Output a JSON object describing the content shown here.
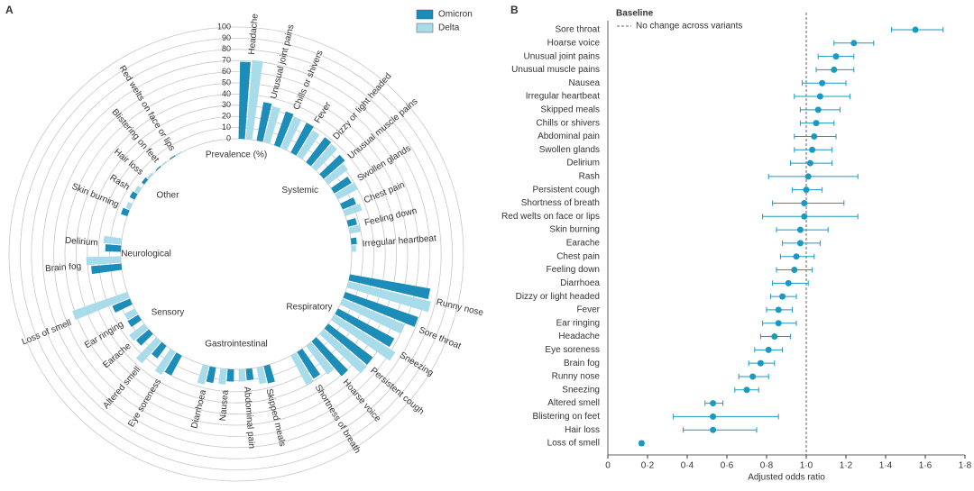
{
  "chart_data": [
    {
      "type": "radial-bar",
      "title": "A",
      "axis_label": "Prevalence (%)",
      "rlim": [
        0,
        100
      ],
      "rticks": [
        0,
        10,
        20,
        30,
        40,
        50,
        60,
        70,
        80,
        90,
        100
      ],
      "grid": true,
      "legend": "upper right",
      "groups": [
        {
          "name": "Systemic",
          "categories": [
            "Headache",
            "Unusual joint pains",
            "Chills or shivers",
            "Fever",
            "Dizzy or light headed",
            "Unusual muscle pains",
            "Swollen glands",
            "Chest pain",
            "Feeling down",
            "Irregular heartbeat"
          ]
        },
        {
          "name": "Respiratory",
          "categories": [
            "Runny nose",
            "Sore throat",
            "Sneezing",
            "Persistent cough",
            "Hoarse voice",
            "Shortness of breath"
          ]
        },
        {
          "name": "Gastrointestinal",
          "categories": [
            "Skipped meals",
            "Abdominal pain",
            "Nausea",
            "Diarrhoea"
          ]
        },
        {
          "name": "Sensory",
          "categories": [
            "Eye soreness",
            "Altered smell",
            "Earache",
            "Ear ringing",
            "Loss of smell"
          ]
        },
        {
          "name": "Neurological",
          "categories": [
            "Brain fog",
            "Delirium"
          ]
        },
        {
          "name": "Other",
          "categories": [
            "Skin burning",
            "Rash",
            "Hair loss",
            "Blistering on feet",
            "Red welts on face or lips"
          ]
        }
      ],
      "series": [
        {
          "name": "Omicron",
          "color": "#1b8db8",
          "values": [
            69,
            35,
            32,
            30,
            28,
            25,
            18,
            13,
            8,
            5,
            73,
            69,
            57,
            50,
            41,
            28,
            16,
            10,
            11,
            14,
            20,
            14,
            15,
            11,
            17,
            27,
            14,
            6,
            5,
            3,
            1,
            1
          ]
        },
        {
          "name": "Delta",
          "color": "#a8dcea",
          "values": [
            71,
            33,
            30,
            27,
            27,
            22,
            20,
            16,
            10,
            4,
            76,
            60,
            64,
            51,
            32,
            30,
            15,
            11,
            14,
            17,
            24,
            26,
            17,
            10,
            52,
            31,
            16,
            4,
            4,
            2,
            1,
            1
          ]
        }
      ]
    },
    {
      "type": "forest",
      "title": "B",
      "x_label": "Adjusted odds ratio",
      "legend_title": "Baseline",
      "baseline": 1,
      "baseline_label": "No change across variants",
      "color": "#1a9ac0",
      "xlim": [
        0,
        1.8
      ],
      "xticks": [
        0,
        {
          "value": 0.2,
          "label": "0·2"
        },
        {
          "value": 0.4,
          "label": "0·4"
        },
        {
          "value": 0.6,
          "label": "0·6"
        },
        {
          "value": 0.8,
          "label": "0·8"
        },
        {
          "value": 1,
          "label": "1·0"
        },
        {
          "value": 1.2,
          "label": "1·2"
        },
        {
          "value": 1.4,
          "label": "1·4"
        },
        {
          "value": 1.6,
          "label": "1·6"
        },
        {
          "value": 1.8,
          "label": "1·8"
        }
      ],
      "categories": [
        "Sore throat",
        "Hoarse voice",
        "Unusual joint pains",
        "Unusual muscle pains",
        "Nausea",
        "Irregular heartbeat",
        "Skipped meals",
        "Chills or shivers",
        "Abdominal pain",
        "Swollen glands",
        "Delirium",
        "Rash",
        "Persistent cough",
        "Shortness of breath",
        "Red welts on face or lips",
        "Skin burning",
        "Earache",
        "Chest pain",
        "Feeling down",
        "Diarrhoea",
        "Dizzy or light headed",
        "Fever",
        "Ear ringing",
        "Headache",
        "Eye soreness",
        "Brain fog",
        "Runny nose",
        "Sneezing",
        "Altered smell",
        "Blistering on feet",
        "Hair loss",
        "Loss of smell"
      ],
      "values": [
        1.55,
        1.24,
        1.15,
        1.14,
        1.08,
        1.07,
        1.06,
        1.05,
        1.04,
        1.03,
        1.02,
        1.01,
        1.0,
        0.99,
        0.99,
        0.97,
        0.97,
        0.95,
        0.94,
        0.91,
        0.88,
        0.86,
        0.86,
        0.84,
        0.81,
        0.77,
        0.73,
        0.7,
        0.53,
        0.53,
        0.53,
        0.17
      ],
      "ci_low": [
        1.43,
        1.14,
        1.06,
        1.05,
        0.98,
        0.94,
        0.97,
        0.97,
        0.94,
        0.94,
        0.92,
        0.81,
        0.93,
        0.83,
        0.78,
        0.85,
        0.88,
        0.87,
        0.85,
        0.83,
        0.82,
        0.8,
        0.78,
        0.77,
        0.74,
        0.71,
        0.66,
        0.64,
        0.49,
        0.33,
        0.38,
        0.16
      ],
      "ci_high": [
        1.69,
        1.34,
        1.24,
        1.24,
        1.2,
        1.22,
        1.17,
        1.14,
        1.15,
        1.13,
        1.13,
        1.26,
        1.08,
        1.19,
        1.26,
        1.11,
        1.07,
        1.04,
        1.03,
        1.01,
        0.95,
        0.93,
        0.95,
        0.92,
        0.88,
        0.84,
        0.81,
        0.76,
        0.58,
        0.86,
        0.75,
        0.18
      ]
    }
  ]
}
